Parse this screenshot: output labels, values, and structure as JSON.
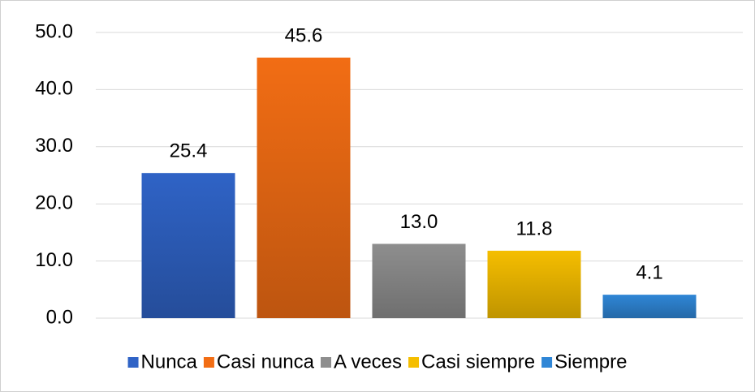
{
  "chart_data": {
    "type": "bar",
    "series": [
      {
        "name": "Nunca",
        "color": "#2f63c6",
        "values": [
          25.4
        ],
        "value_labels": [
          "25.4"
        ]
      },
      {
        "name": "Casi nunca",
        "color": "#f26d14",
        "values": [
          45.6
        ],
        "value_labels": [
          "45.6"
        ]
      },
      {
        "name": "A veces",
        "color": "#8e8e8e",
        "values": [
          13.0
        ],
        "value_labels": [
          "13.0"
        ]
      },
      {
        "name": "Casi siempre",
        "color": "#f5be00",
        "values": [
          11.8
        ],
        "value_labels": [
          "11.8"
        ]
      },
      {
        "name": "Siempre",
        "color": "#2f86d6",
        "values": [
          4.1
        ],
        "value_labels": [
          "4.1"
        ]
      }
    ],
    "ylim": [
      0,
      50
    ],
    "yticks": [
      {
        "value": 0,
        "label": "0.0"
      },
      {
        "value": 10,
        "label": "10.0"
      },
      {
        "value": 20,
        "label": "20.0"
      },
      {
        "value": 30,
        "label": "30.0"
      },
      {
        "value": 40,
        "label": "40.0"
      },
      {
        "value": 50,
        "label": "50.0"
      }
    ],
    "grid": true,
    "legend": "bottom"
  }
}
